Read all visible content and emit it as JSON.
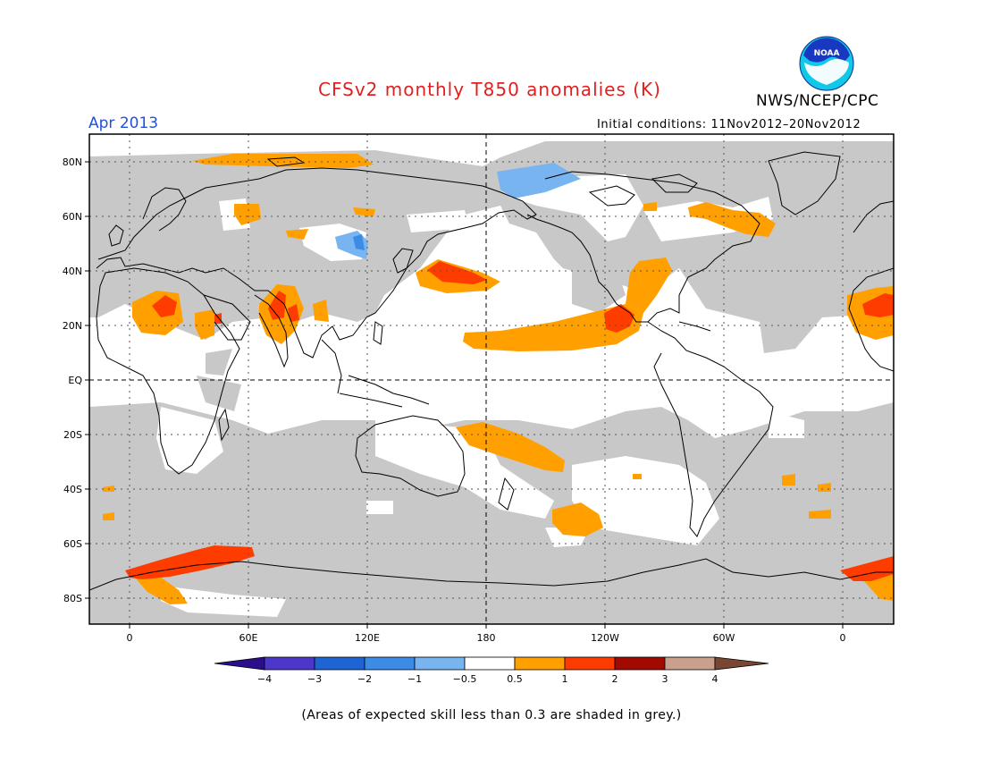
{
  "header": {
    "title": "CFSv2 monthly T850 anomalies (K)",
    "month": "Apr 2013",
    "agency": "NWS/NCEP/CPC",
    "logo_text": "NOAA",
    "initial_conditions": "Initial conditions: 11Nov2012–20Nov2012"
  },
  "map": {
    "lat_labels": [
      "80N",
      "60N",
      "40N",
      "20N",
      "EQ",
      "20S",
      "40S",
      "60S",
      "80S"
    ],
    "lon_labels": [
      "0",
      "60E",
      "120E",
      "180",
      "120W",
      "60W",
      "0"
    ]
  },
  "colorbar": {
    "labels": [
      "−4",
      "−3",
      "−2",
      "−1",
      "−0.5",
      "0.5",
      "1",
      "2",
      "3",
      "4"
    ],
    "colors": [
      "#2a0e8c",
      "#4b37c8",
      "#1e64d2",
      "#3c8ce6",
      "#78b4f0",
      "#ffffff",
      "#ffa000",
      "#ff3c00",
      "#a00a00",
      "#c8a08c",
      "#784632"
    ]
  },
  "footnote": "(Areas of expected skill less than 0.3 are shaded in grey.)",
  "colors": {
    "skill_grey": "#c8c8c8",
    "title_red": "#e02020",
    "month_blue": "#2050e0"
  }
}
